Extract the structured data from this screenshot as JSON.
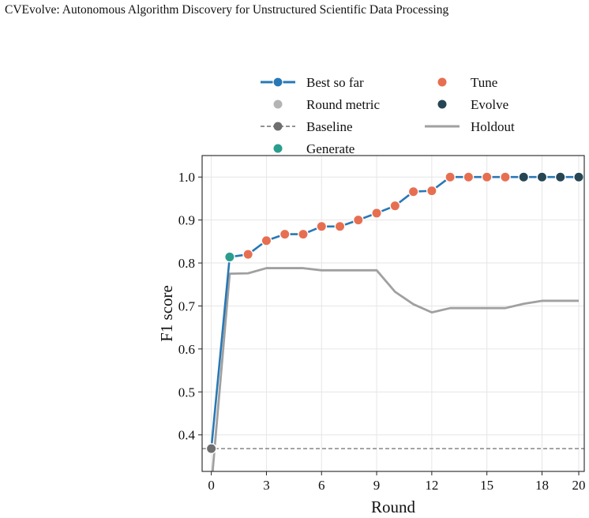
{
  "paper_title": "CVEvolve: Autonomous Algorithm Discovery for Unstructured Scientific Data Processing",
  "chart_data": {
    "type": "line",
    "title": "",
    "xlabel": "Round",
    "ylabel": "F1 score",
    "xlim": [
      -0.5,
      20.3
    ],
    "ylim": [
      0.315,
      1.05
    ],
    "xticks": [
      0,
      3,
      6,
      9,
      12,
      15,
      18,
      20
    ],
    "yticks": [
      0.4,
      0.5,
      0.6,
      0.7,
      0.8,
      0.9,
      1.0
    ],
    "ytick_labels": [
      "0.4",
      "0.5",
      "0.6",
      "0.7",
      "0.8",
      "0.9",
      "1.0"
    ],
    "grid": true,
    "legend_position": "top",
    "legend": [
      {
        "label": "Best so far",
        "kind": "line-marker",
        "color": "#2878b5"
      },
      {
        "label": "Round metric",
        "kind": "marker",
        "color": "#b4b4b4"
      },
      {
        "label": "Baseline",
        "kind": "dashed-marker",
        "color": "#6e6e6e"
      },
      {
        "label": "Generate",
        "kind": "marker",
        "color": "#2a9d8f"
      },
      {
        "label": "Tune",
        "kind": "marker",
        "color": "#e76f51"
      },
      {
        "label": "Evolve",
        "kind": "marker",
        "color": "#264653"
      },
      {
        "label": "Holdout",
        "kind": "line",
        "color": "#a0a0a0"
      }
    ],
    "colors": {
      "best": "#2878b5",
      "baseline": "#6e6e6e",
      "holdout": "#a0a0a0",
      "generate": "#2a9d8f",
      "tune": "#e76f51",
      "evolve": "#264653",
      "grid": "#e6e6e6"
    },
    "baseline": 0.368,
    "series": [
      {
        "name": "Best so far",
        "x": [
          0,
          1,
          2,
          3,
          4,
          5,
          6,
          7,
          8,
          9,
          10,
          11,
          12,
          13,
          14,
          15,
          16,
          17,
          18,
          19,
          20
        ],
        "y": [
          0.368,
          0.814,
          0.82,
          0.852,
          0.867,
          0.867,
          0.885,
          0.885,
          0.9,
          0.916,
          0.933,
          0.966,
          0.968,
          1.0,
          1.0,
          1.0,
          1.0,
          1.0,
          1.0,
          1.0,
          1.0
        ],
        "phase": [
          "baseline",
          "generate",
          "tune",
          "tune",
          "tune",
          "tune",
          "tune",
          "tune",
          "tune",
          "tune",
          "tune",
          "tune",
          "tune",
          "tune",
          "tune",
          "tune",
          "tune",
          "evolve",
          "evolve",
          "evolve",
          "evolve"
        ]
      },
      {
        "name": "Holdout",
        "x": [
          0,
          1,
          2,
          3,
          4,
          5,
          6,
          7,
          8,
          9,
          10,
          11,
          12,
          13,
          14,
          15,
          16,
          17,
          18,
          19,
          20
        ],
        "y": [
          0.28,
          0.775,
          0.776,
          0.788,
          0.788,
          0.788,
          0.783,
          0.783,
          0.783,
          0.783,
          0.733,
          0.704,
          0.685,
          0.695,
          0.695,
          0.695,
          0.695,
          0.705,
          0.712,
          0.712,
          0.712
        ]
      }
    ]
  }
}
